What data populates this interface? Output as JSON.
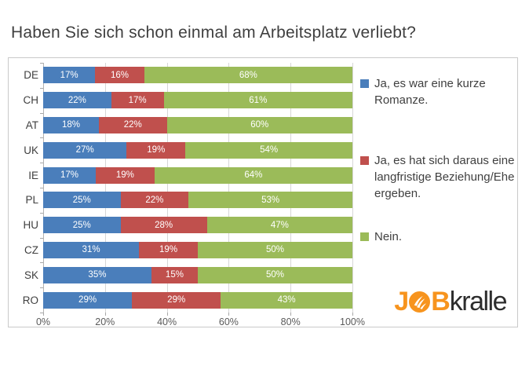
{
  "title": "Haben Sie sich schon einmal am Arbeitsplatz verliebt?",
  "chart_data": {
    "type": "bar",
    "orientation": "horizontal",
    "stacked": true,
    "grid": true,
    "legend_position": "right",
    "value_suffix": "%",
    "categories": [
      "DE",
      "CH",
      "AT",
      "UK",
      "IE",
      "PL",
      "HU",
      "CZ",
      "SK",
      "RO"
    ],
    "series": [
      {
        "name": "Ja, es war eine kurze Romanze.",
        "color": "#4a7ebb",
        "values": [
          17,
          22,
          18,
          27,
          17,
          25,
          25,
          31,
          35,
          29
        ]
      },
      {
        "name": "Ja, es hat sich daraus eine langfristige Beziehung/Ehe ergeben.",
        "color": "#c0504d",
        "values": [
          16,
          17,
          22,
          19,
          19,
          22,
          28,
          19,
          15,
          29
        ]
      },
      {
        "name": "Nein.",
        "color": "#9bbb59",
        "values": [
          68,
          61,
          60,
          54,
          64,
          53,
          47,
          50,
          50,
          43
        ]
      }
    ],
    "x_axis": {
      "min": 0,
      "max": 100,
      "ticks": [
        "0%",
        "20%",
        "40%",
        "60%",
        "80%",
        "100%"
      ]
    }
  },
  "logo": {
    "part_j": "J",
    "part_b": "B",
    "part_rest": "kralle",
    "orange": "#f7941e",
    "dark": "#2d2d2d"
  },
  "colors": {
    "grid": "#d6d6d6",
    "axis": "#a8a8a8",
    "title_text": "#3f3f3f",
    "legend_text": "#404040"
  }
}
